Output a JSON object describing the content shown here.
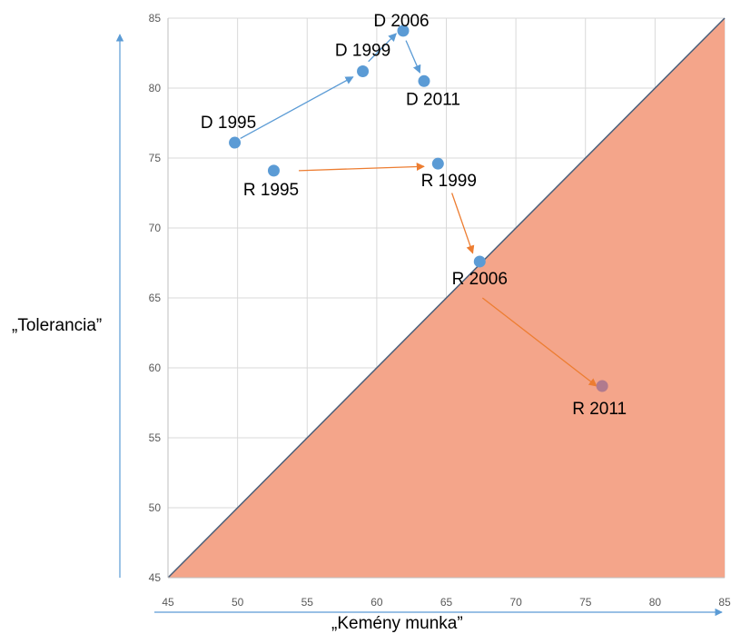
{
  "chart_data": {
    "type": "scatter",
    "xlabel": "„Kemény munka”",
    "ylabel": "„Tolerancia”",
    "xlim": [
      45,
      85
    ],
    "ylim": [
      45,
      85
    ],
    "x_ticks": [
      45,
      50,
      55,
      60,
      65,
      70,
      75,
      80,
      85
    ],
    "y_ticks": [
      45,
      50,
      55,
      60,
      65,
      70,
      75,
      80,
      85
    ],
    "grid": true,
    "legend": "none",
    "shaded_region": {
      "description": "below diagonal y = x",
      "color": "#f4a58a"
    },
    "diagonal": {
      "from": [
        45,
        45
      ],
      "to": [
        85,
        85
      ],
      "color": "#4a5f7a"
    },
    "points": [
      {
        "label": "D 1995",
        "x": 49.8,
        "y": 76.1,
        "color": "#5b9bd5"
      },
      {
        "label": "D 1999",
        "x": 59.0,
        "y": 81.2,
        "color": "#5b9bd5"
      },
      {
        "label": "D 2006",
        "x": 61.9,
        "y": 84.1,
        "color": "#5b9bd5"
      },
      {
        "label": "D 2011",
        "x": 63.4,
        "y": 80.5,
        "color": "#5b9bd5"
      },
      {
        "label": "R 1995",
        "x": 52.6,
        "y": 74.1,
        "color": "#5b9bd5"
      },
      {
        "label": "R 1999",
        "x": 64.4,
        "y": 74.6,
        "color": "#5b9bd5"
      },
      {
        "label": "R 2006",
        "x": 67.4,
        "y": 67.6,
        "color": "#5b9bd5"
      },
      {
        "label": "R 2011",
        "x": 76.2,
        "y": 58.7,
        "color": "#b07a8e"
      }
    ],
    "arrows": [
      {
        "from": [
          50.2,
          76.4
        ],
        "to": [
          58.3,
          80.8
        ],
        "color": "#5b9bd5"
      },
      {
        "from": [
          59.4,
          81.9
        ],
        "to": [
          61.4,
          83.9
        ],
        "color": "#5b9bd5"
      },
      {
        "from": [
          62.1,
          83.4
        ],
        "to": [
          63.1,
          81.1
        ],
        "color": "#5b9bd5"
      },
      {
        "from": [
          54.4,
          74.1
        ],
        "to": [
          63.4,
          74.4
        ],
        "color": "#ed7d31"
      },
      {
        "from": [
          65.4,
          72.5
        ],
        "to": [
          66.9,
          68.2
        ],
        "color": "#ed7d31"
      },
      {
        "from": [
          67.6,
          65.0
        ],
        "to": [
          75.8,
          58.7
        ],
        "color": "#ed7d31"
      }
    ],
    "axis_arrows_color": "#5b9bd5"
  }
}
